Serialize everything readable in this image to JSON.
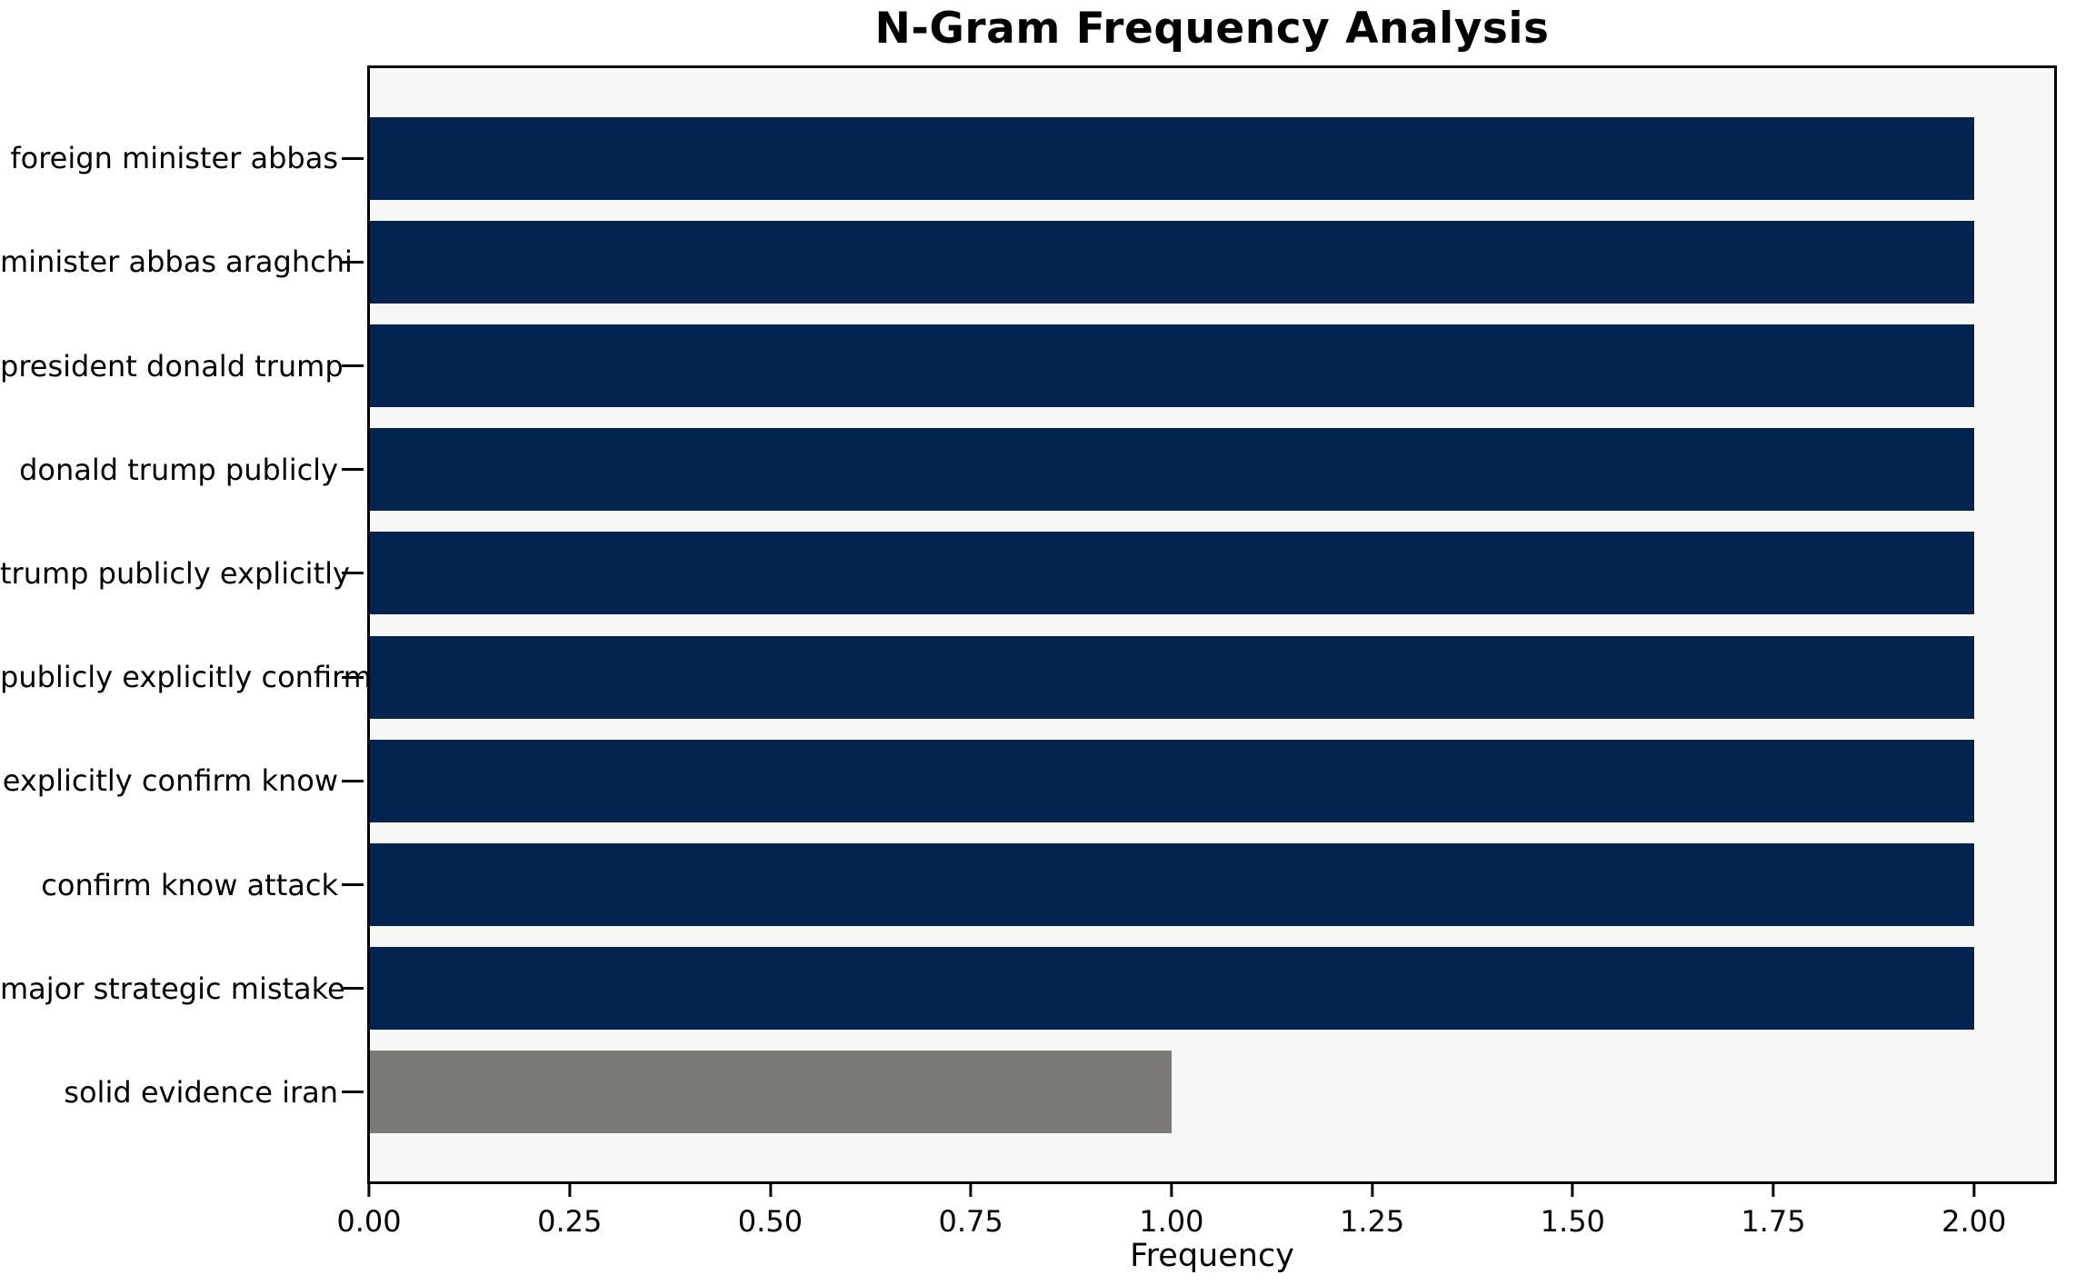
{
  "chart_data": {
    "type": "bar",
    "orientation": "horizontal",
    "title": "N-Gram Frequency Analysis",
    "xlabel": "Frequency",
    "ylabel": "",
    "categories": [
      "foreign minister abbas",
      "minister abbas araghchi",
      "president donald trump",
      "donald trump publicly",
      "trump publicly explicitly",
      "publicly explicitly confirm",
      "explicitly confirm know",
      "confirm know attack",
      "major strategic mistake",
      "solid evidence iran"
    ],
    "values": [
      2,
      2,
      2,
      2,
      2,
      2,
      2,
      2,
      2,
      1
    ],
    "bar_colors": [
      "#02244e",
      "#02244e",
      "#02244e",
      "#02244e",
      "#02244e",
      "#02244e",
      "#02244e",
      "#02244e",
      "#02244e",
      "#7b7a77"
    ],
    "xlim": [
      0,
      2.1
    ],
    "x_tick_values": [
      0,
      0.25,
      0.5,
      0.75,
      1.0,
      1.25,
      1.5,
      1.75,
      2.0
    ],
    "x_tick_labels": [
      "0.00",
      "0.25",
      "0.50",
      "0.75",
      "1.00",
      "1.25",
      "1.50",
      "1.75",
      "2.00"
    ],
    "grid": false,
    "legend": null,
    "plot_background": "#f7f7f6",
    "figure_background": "#ffffff",
    "spine_color": "#000000",
    "tick_color": "#000000"
  }
}
